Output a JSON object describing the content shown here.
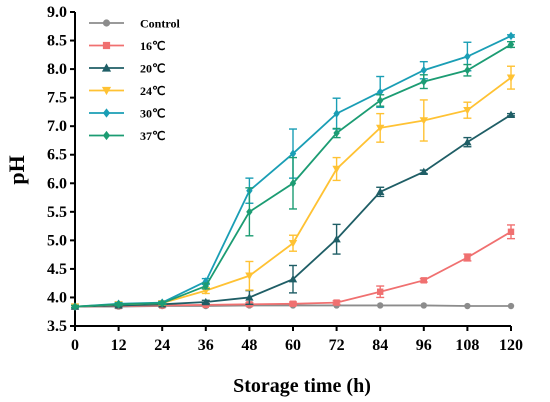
{
  "chart_data": {
    "type": "line",
    "title": "",
    "xlabel": "Storage time (h)",
    "ylabel": "pH",
    "x": [
      0,
      12,
      24,
      36,
      48,
      60,
      72,
      84,
      96,
      108,
      120
    ],
    "xlim": [
      0,
      120
    ],
    "ylim": [
      3.5,
      9.0
    ],
    "x_ticks": [
      "0",
      "12",
      "24",
      "36",
      "48",
      "60",
      "72",
      "84",
      "96",
      "108",
      "120"
    ],
    "y_ticks": [
      "3.5",
      "4.0",
      "4.5",
      "5.0",
      "5.5",
      "6.0",
      "6.5",
      "7.0",
      "7.5",
      "8.0",
      "8.5",
      "9.0"
    ],
    "grid": false,
    "legend_position": "top-left",
    "series": [
      {
        "name": "Control",
        "color": "#8c8c8c",
        "marker": "circle",
        "values": [
          3.84,
          3.84,
          3.85,
          3.85,
          3.86,
          3.86,
          3.86,
          3.86,
          3.86,
          3.85,
          3.85
        ],
        "errors": [
          0.01,
          0.01,
          0.01,
          0.01,
          0.01,
          0.01,
          0.01,
          0.01,
          0.01,
          0.01,
          0.01
        ]
      },
      {
        "name": "16℃",
        "color": "#f07070",
        "marker": "square",
        "values": [
          3.84,
          3.85,
          3.86,
          3.87,
          3.88,
          3.89,
          3.91,
          4.1,
          4.3,
          4.7,
          5.15
        ],
        "errors": [
          0.02,
          0.02,
          0.02,
          0.02,
          0.03,
          0.03,
          0.03,
          0.1,
          0.03,
          0.06,
          0.12
        ]
      },
      {
        "name": "20℃",
        "color": "#1f5e66",
        "marker": "triangle-up",
        "values": [
          3.84,
          3.86,
          3.88,
          3.92,
          4.0,
          4.32,
          5.02,
          5.85,
          6.2,
          6.72,
          7.2
        ],
        "errors": [
          0.02,
          0.02,
          0.02,
          0.03,
          0.12,
          0.24,
          0.26,
          0.08,
          0.03,
          0.08,
          0.02
        ]
      },
      {
        "name": "24℃",
        "color": "#ffc233",
        "marker": "triangle-down",
        "values": [
          3.84,
          3.88,
          3.9,
          4.12,
          4.38,
          4.95,
          6.25,
          6.97,
          7.1,
          7.28,
          7.85
        ],
        "errors": [
          0.02,
          0.02,
          0.03,
          0.05,
          0.25,
          0.14,
          0.2,
          0.25,
          0.36,
          0.14,
          0.2
        ]
      },
      {
        "name": "30℃",
        "color": "#1a9eb5",
        "marker": "diamond",
        "values": [
          3.84,
          3.89,
          3.91,
          4.28,
          5.87,
          6.52,
          7.22,
          7.6,
          7.98,
          8.22,
          8.58
        ],
        "errors": [
          0.02,
          0.02,
          0.02,
          0.05,
          0.22,
          0.43,
          0.27,
          0.27,
          0.15,
          0.25,
          0.02
        ]
      },
      {
        "name": "37℃",
        "color": "#1c9c73",
        "marker": "diamond",
        "values": [
          3.84,
          3.88,
          3.9,
          4.2,
          5.5,
          6.0,
          6.88,
          7.45,
          7.78,
          7.98,
          8.43
        ],
        "errors": [
          0.02,
          0.02,
          0.02,
          0.05,
          0.42,
          0.45,
          0.08,
          0.1,
          0.12,
          0.1,
          0.05
        ]
      }
    ]
  }
}
